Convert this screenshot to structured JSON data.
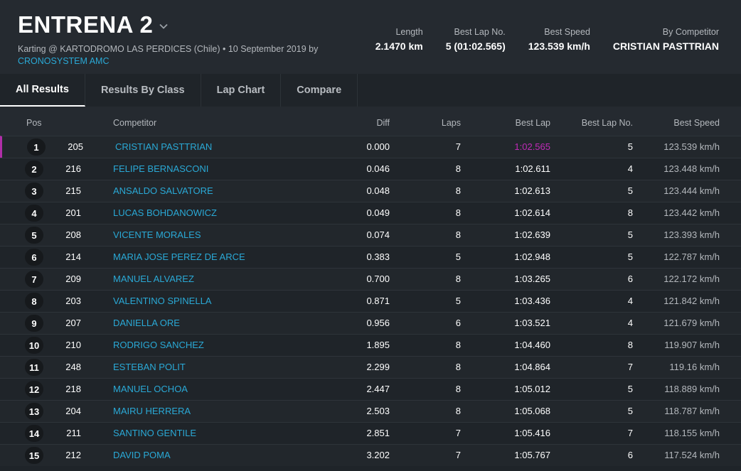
{
  "header": {
    "title": "ENTRENA 2",
    "subtitle": "Karting @ KARTODROMO LAS PERDICES (Chile) • 10 September 2019 by",
    "organizer": "CRONOSYSTEM AMC",
    "stats": [
      {
        "label": "Length",
        "value": "2.1470 km"
      },
      {
        "label": "Best Lap No.",
        "value": "5 (01:02.565)"
      },
      {
        "label": "Best Speed",
        "value": "123.539 km/h"
      },
      {
        "label": "By Competitor",
        "value": "CRISTIAN PASTTRIAN"
      }
    ]
  },
  "tabs": [
    {
      "label": "All Results",
      "active": true
    },
    {
      "label": "Results By Class",
      "active": false
    },
    {
      "label": "Lap Chart",
      "active": false
    },
    {
      "label": "Compare",
      "active": false
    }
  ],
  "table": {
    "headers": {
      "pos": "Pos",
      "competitor": "Competitor",
      "diff": "Diff",
      "laps": "Laps",
      "best_lap": "Best Lap",
      "best_lap_no": "Best Lap No.",
      "best_speed": "Best Speed"
    },
    "rows": [
      {
        "pos": "1",
        "num": "205",
        "name": "CRISTIAN PASTTRIAN",
        "diff": "0.000",
        "laps": "7",
        "best_lap": "1:02.565",
        "best_lap_no": "5",
        "best_speed": "123.539 km/h"
      },
      {
        "pos": "2",
        "num": "216",
        "name": "FELIPE BERNASCONI",
        "diff": "0.046",
        "laps": "8",
        "best_lap": "1:02.611",
        "best_lap_no": "4",
        "best_speed": "123.448 km/h"
      },
      {
        "pos": "3",
        "num": "215",
        "name": "ANSALDO SALVATORE",
        "diff": "0.048",
        "laps": "8",
        "best_lap": "1:02.613",
        "best_lap_no": "5",
        "best_speed": "123.444 km/h"
      },
      {
        "pos": "4",
        "num": "201",
        "name": "LUCAS BOHDANOWICZ",
        "diff": "0.049",
        "laps": "8",
        "best_lap": "1:02.614",
        "best_lap_no": "8",
        "best_speed": "123.442 km/h"
      },
      {
        "pos": "5",
        "num": "208",
        "name": "VICENTE MORALES",
        "diff": "0.074",
        "laps": "8",
        "best_lap": "1:02.639",
        "best_lap_no": "5",
        "best_speed": "123.393 km/h"
      },
      {
        "pos": "6",
        "num": "214",
        "name": "MARIA JOSE PEREZ DE ARCE",
        "diff": "0.383",
        "laps": "5",
        "best_lap": "1:02.948",
        "best_lap_no": "5",
        "best_speed": "122.787 km/h"
      },
      {
        "pos": "7",
        "num": "209",
        "name": "MANUEL ALVAREZ",
        "diff": "0.700",
        "laps": "8",
        "best_lap": "1:03.265",
        "best_lap_no": "6",
        "best_speed": "122.172 km/h"
      },
      {
        "pos": "8",
        "num": "203",
        "name": "VALENTINO SPINELLA",
        "diff": "0.871",
        "laps": "5",
        "best_lap": "1:03.436",
        "best_lap_no": "4",
        "best_speed": "121.842 km/h"
      },
      {
        "pos": "9",
        "num": "207",
        "name": "DANIELLA ORE",
        "diff": "0.956",
        "laps": "6",
        "best_lap": "1:03.521",
        "best_lap_no": "4",
        "best_speed": "121.679 km/h"
      },
      {
        "pos": "10",
        "num": "210",
        "name": "RODRIGO SANCHEZ",
        "diff": "1.895",
        "laps": "8",
        "best_lap": "1:04.460",
        "best_lap_no": "8",
        "best_speed": "119.907 km/h"
      },
      {
        "pos": "11",
        "num": "248",
        "name": "ESTEBAN POLIT",
        "diff": "2.299",
        "laps": "8",
        "best_lap": "1:04.864",
        "best_lap_no": "7",
        "best_speed": "119.16 km/h"
      },
      {
        "pos": "12",
        "num": "218",
        "name": "MANUEL OCHOA",
        "diff": "2.447",
        "laps": "8",
        "best_lap": "1:05.012",
        "best_lap_no": "5",
        "best_speed": "118.889 km/h"
      },
      {
        "pos": "13",
        "num": "204",
        "name": "MAIRU HERRERA",
        "diff": "2.503",
        "laps": "8",
        "best_lap": "1:05.068",
        "best_lap_no": "5",
        "best_speed": "118.787 km/h"
      },
      {
        "pos": "14",
        "num": "211",
        "name": "SANTINO GENTILE",
        "diff": "2.851",
        "laps": "7",
        "best_lap": "1:05.416",
        "best_lap_no": "7",
        "best_speed": "118.155 km/h"
      },
      {
        "pos": "15",
        "num": "212",
        "name": "DAVID POMA",
        "diff": "3.202",
        "laps": "7",
        "best_lap": "1:05.767",
        "best_lap_no": "6",
        "best_speed": "117.524 km/h"
      }
    ]
  },
  "colors": {
    "accent_link": "#2aa9d6",
    "best_lap_highlight": "#c02ab8"
  }
}
